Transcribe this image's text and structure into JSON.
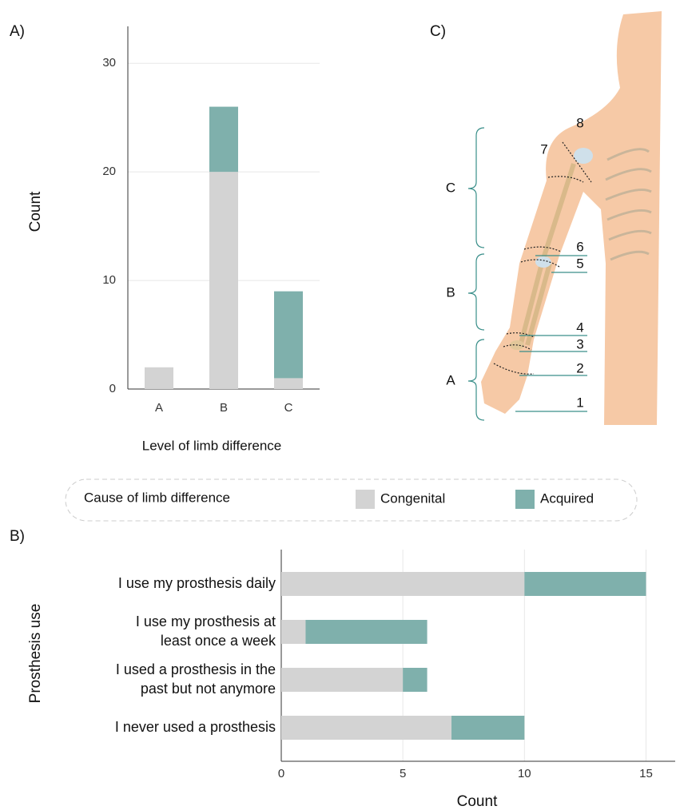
{
  "chart_data": [
    {
      "type": "bar",
      "panel": "A)",
      "y_label": "Count",
      "x_label": "Level of limb difference",
      "categories": [
        "A",
        "B",
        "C"
      ],
      "series": [
        {
          "name": "Congenital",
          "color": "#d3d3d3",
          "values": [
            2,
            20,
            1
          ]
        },
        {
          "name": "Acquired",
          "color": "#7fb0ac",
          "values": [
            0,
            6,
            8
          ]
        }
      ],
      "stacked": true,
      "ylim": [
        0,
        33.4
      ],
      "yticks": [
        0,
        10,
        20,
        30
      ],
      "grid": true
    },
    {
      "type": "barh",
      "panel": "B)",
      "y_label": "Prosthesis use",
      "x_label": "Count",
      "categories": [
        "I use my prosthesis daily",
        "I use my prosthesis at\nleast once a week",
        "I used a prosthesis in the\npast but not anymore",
        "I never used a prosthesis"
      ],
      "series": [
        {
          "name": "Congenital",
          "color": "#d3d3d3",
          "values": [
            10,
            1,
            5,
            7
          ]
        },
        {
          "name": "Acquired",
          "color": "#7fb0ac",
          "values": [
            5,
            5,
            1,
            3
          ]
        }
      ],
      "stacked": true,
      "xlim": [
        0,
        16.2
      ],
      "xticks": [
        0,
        5,
        10,
        15
      ],
      "grid": true
    }
  ],
  "legend": {
    "title": "Cause of limb difference"
  },
  "diagram": {
    "panel": "C)",
    "regions": [
      "C",
      "B",
      "A"
    ],
    "levels": [
      "1",
      "2",
      "3",
      "4",
      "5",
      "6",
      "7",
      "8"
    ]
  }
}
